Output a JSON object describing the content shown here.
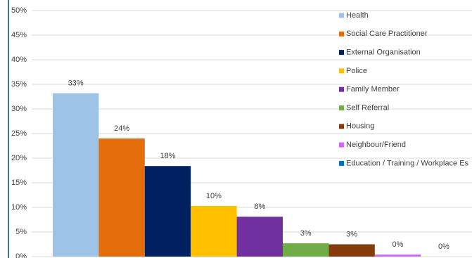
{
  "chart_data": {
    "type": "bar",
    "categories": [
      "Health",
      "Social Care Practitioner",
      "External Organisation",
      "Police",
      "Family Member",
      "Self Referral",
      "Housing",
      "Neighbour/Friend",
      "Education / Training / Workplace Es"
    ],
    "values": [
      33.2,
      24.0,
      18.4,
      10.3,
      8.1,
      2.7,
      2.5,
      0.4,
      0.0
    ],
    "value_labels": [
      "33%",
      "24%",
      "18%",
      "10%",
      "8%",
      "3%",
      "3%",
      "0%",
      "0%"
    ],
    "colors": [
      "#9dc3e6",
      "#e46c0a",
      "#002060",
      "#ffc000",
      "#7030a0",
      "#70ad47",
      "#843c0c",
      "#cc66ff",
      "#0070c0"
    ],
    "ylim": [
      0,
      50
    ],
    "yticks": [
      {
        "value": 0,
        "label": "0%"
      },
      {
        "value": 5,
        "label": "5%"
      },
      {
        "value": 10,
        "label": "10%"
      },
      {
        "value": 15,
        "label": "15%"
      },
      {
        "value": 20,
        "label": "20%"
      },
      {
        "value": 25,
        "label": "25%"
      },
      {
        "value": 30,
        "label": "30%"
      },
      {
        "value": 35,
        "label": "35%"
      },
      {
        "value": 40,
        "label": "40%"
      },
      {
        "value": 45,
        "label": "45%"
      },
      {
        "value": 50,
        "label": "50%"
      }
    ],
    "grid": true,
    "legend": "upper-right"
  }
}
